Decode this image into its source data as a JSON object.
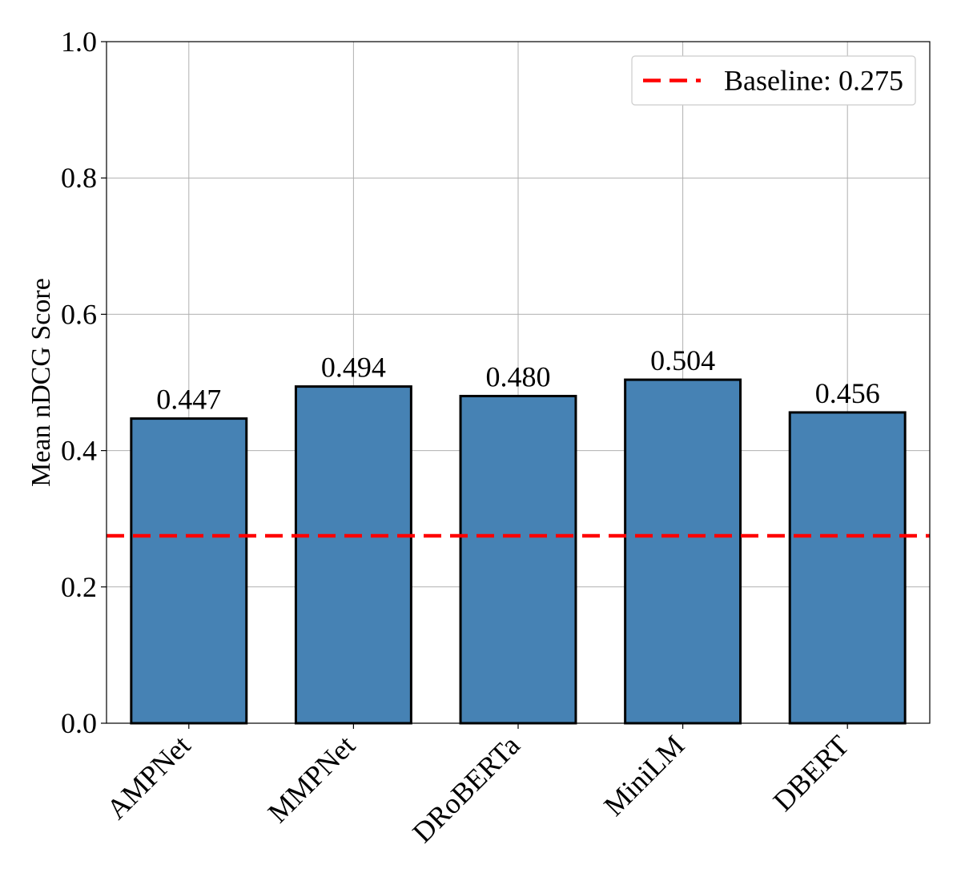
{
  "chart_data": {
    "type": "bar",
    "categories": [
      "AMPNet",
      "MMPNet",
      "DRoBERTa",
      "MiniLM",
      "DBERT"
    ],
    "values": [
      0.447,
      0.494,
      0.48,
      0.504,
      0.456
    ],
    "value_labels": [
      "0.447",
      "0.494",
      "0.480",
      "0.504",
      "0.456"
    ],
    "ylabel": "Mean nDCG Score",
    "xlabel": "",
    "ylim": [
      0,
      1.0
    ],
    "yticks": [
      0.0,
      0.2,
      0.4,
      0.6,
      0.8,
      1.0
    ],
    "ytick_labels": [
      "0.0",
      "0.2",
      "0.4",
      "0.6",
      "0.8",
      "1.0"
    ],
    "grid": true,
    "bar_color": "#4682b4",
    "bar_edge_color": "#000000",
    "reference_line": {
      "value": 0.275,
      "style": "dashed",
      "color": "#ff0000",
      "label": "Baseline: 0.275"
    },
    "legend_position": "top-right"
  }
}
